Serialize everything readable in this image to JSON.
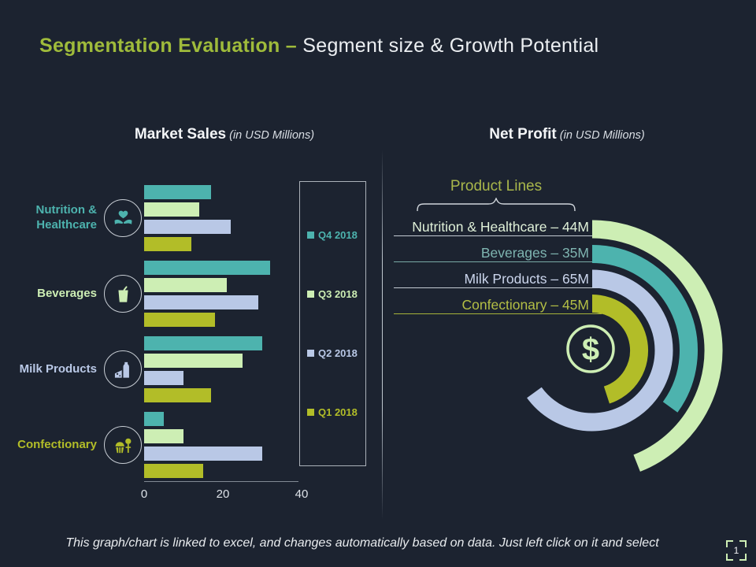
{
  "slide": {
    "title_accent": "Segmentation Evaluation – ",
    "title_rest": "Segment size & Growth Potential",
    "footer": "This graph/chart is linked to excel, and changes automatically based on data. Just left click on it and select",
    "page_number": "1"
  },
  "colors": {
    "background": "#1c2330",
    "accent_green": "#9fbb3b",
    "teal": "#4db3ae",
    "light_green": "#cdeeb4",
    "periwinkle": "#b9c8e6",
    "olive": "#b2bd28",
    "line_gray": "#c4cad2"
  },
  "market_sales": {
    "title": "Market Sales",
    "subtitle": " (in USD Millions)",
    "axis_ticks": [
      "0",
      "20",
      "40"
    ],
    "categories": [
      {
        "name": "Nutrition & Healthcare",
        "lines": [
          "Nutrition &",
          "Healthcare"
        ],
        "color": "#4db3ae",
        "icon": "heart-hands-icon"
      },
      {
        "name": "Beverages",
        "lines": [
          "Beverages"
        ],
        "color": "#cdeeb4",
        "icon": "beverage-cup-icon"
      },
      {
        "name": "Milk Products",
        "lines": [
          "Milk Products"
        ],
        "color": "#b9c8e6",
        "icon": "milk-bottle-icon"
      },
      {
        "name": "Confectionary",
        "lines": [
          "Confectionary"
        ],
        "color": "#b2bd28",
        "icon": "cupcake-icon"
      }
    ]
  },
  "net_profit": {
    "title": "Net Profit",
    "subtitle": " (in USD Millions)",
    "product_lines_label": "Product Lines",
    "rows": [
      {
        "label": "Nutrition & Healthcare – 44M",
        "text_color": "#dff0d8",
        "line_color": "#c4cad2"
      },
      {
        "label": "Beverages – 35M",
        "text_color": "#7fb5b1",
        "line_color": "#79a9a6"
      },
      {
        "label": "Milk Products  – 65M",
        "text_color": "#cbd5ec",
        "line_color": "#c4cad2"
      },
      {
        "label": "Confectionary – 45M",
        "text_color": "#b4bf45",
        "line_color": "#a6b23a"
      }
    ],
    "dollar_symbol": "$",
    "dollar_icon": "dollar-coin-icon"
  },
  "chart_data": [
    {
      "type": "bar",
      "orientation": "horizontal",
      "title": "Market Sales",
      "subtitle": "(in USD Millions)",
      "xlabel": "",
      "ylabel": "",
      "xlim": [
        0,
        40
      ],
      "x_ticks": [
        0,
        20,
        40
      ],
      "grid": false,
      "legend_position": "right",
      "categories": [
        "Nutrition & Healthcare",
        "Beverages",
        "Milk Products",
        "Confectionary"
      ],
      "series": [
        {
          "name": "Q4 2018",
          "color": "#4db3ae",
          "values": [
            17,
            32,
            30,
            5
          ]
        },
        {
          "name": "Q3 2018",
          "color": "#cdeeb4",
          "values": [
            14,
            21,
            25,
            10
          ]
        },
        {
          "name": "Q2 2018",
          "color": "#b9c8e6",
          "values": [
            22,
            29,
            10,
            30
          ]
        },
        {
          "name": "Q1 2018",
          "color": "#b2bd28",
          "values": [
            12,
            18,
            17,
            15
          ]
        }
      ]
    },
    {
      "type": "radial_bar",
      "title": "Net Profit",
      "subtitle": "(in USD Millions)",
      "group_label": "Product Lines",
      "categories": [
        "Nutrition & Healthcare",
        "Beverages",
        "Milk Products",
        "Confectionary"
      ],
      "values": [
        44,
        35,
        65,
        45
      ],
      "unit": "M",
      "colors": [
        "#cdeeb4",
        "#4db3ae",
        "#b9c8e6",
        "#b2bd28"
      ],
      "degrees_per_unit": 3.6,
      "arc_start": "12 o'clock, clockwise"
    }
  ]
}
